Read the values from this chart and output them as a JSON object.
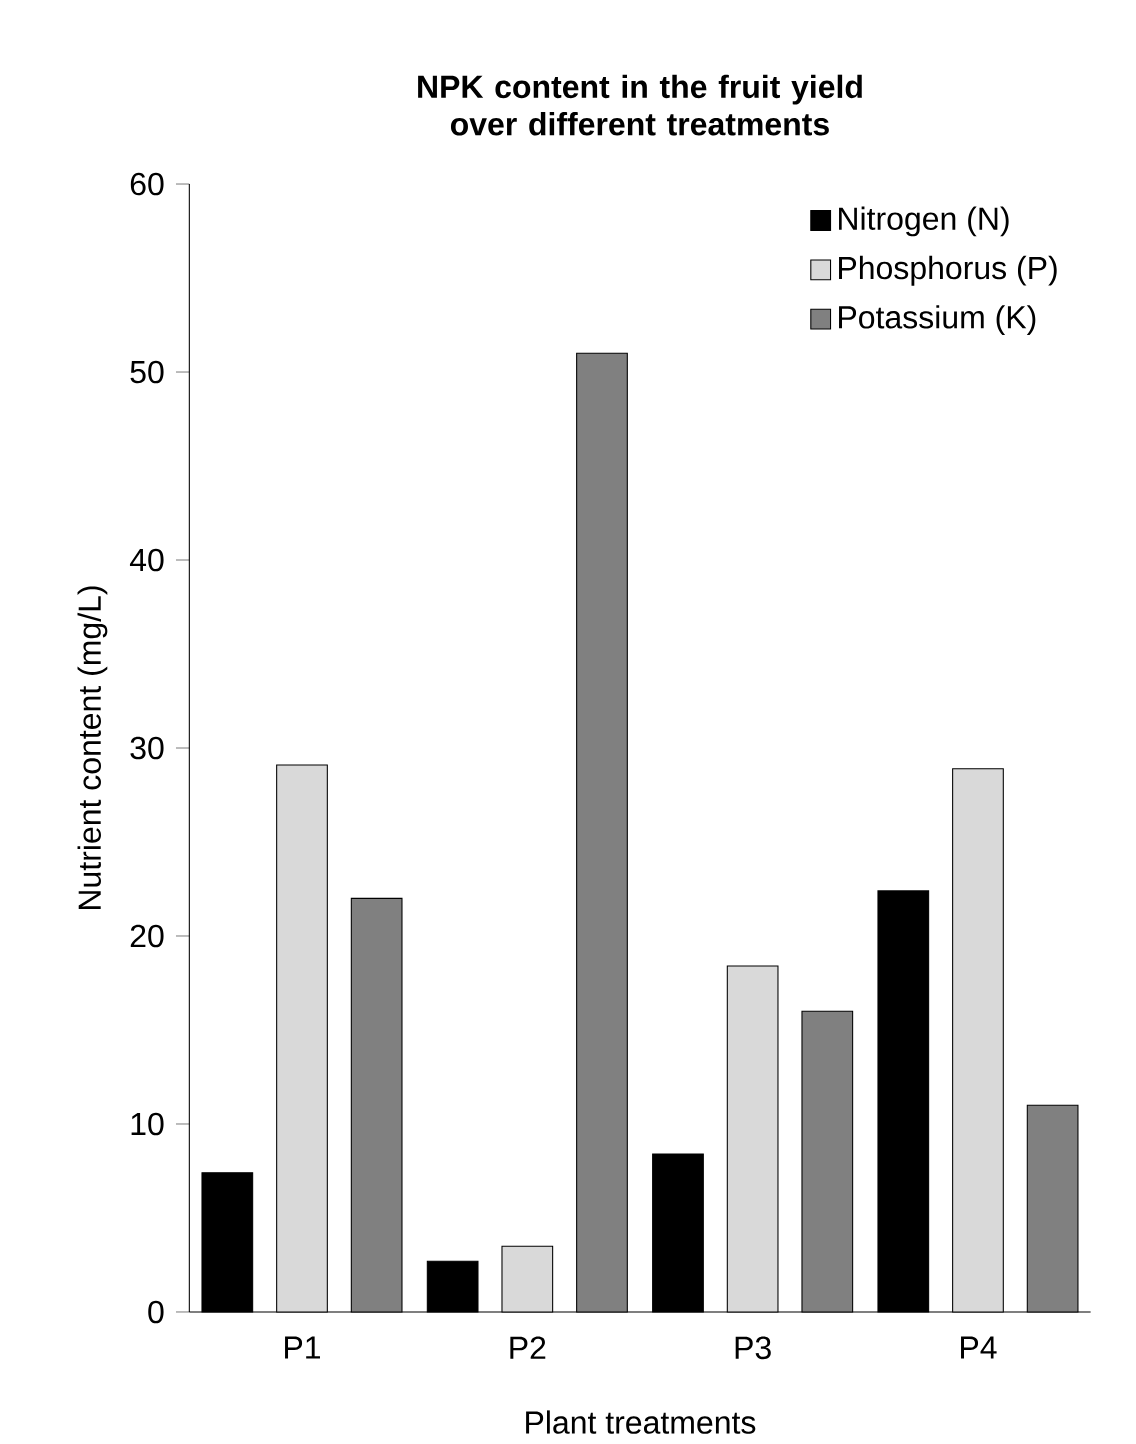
{
  "chart_data": {
    "type": "bar",
    "title": "NPK content in the fruit yield over different treatments",
    "xlabel": "Plant treatments",
    "ylabel": "Nutrient content (mg/L)",
    "categories": [
      "P1",
      "P2",
      "P3",
      "P4"
    ],
    "series": [
      {
        "name": "Nitrogen (N)",
        "color": "#000000",
        "values": [
          7.4,
          2.7,
          8.4,
          22.4
        ]
      },
      {
        "name": "Phosphorus (P)",
        "color": "#d9d9d9",
        "values": [
          29.1,
          3.5,
          18.4,
          28.9
        ]
      },
      {
        "name": "Potassium (K)",
        "color": "#808080",
        "values": [
          22.0,
          51.0,
          16.0,
          11.0
        ]
      }
    ],
    "ylim": [
      0,
      60
    ],
    "yticks": [
      0,
      10,
      20,
      30,
      40,
      50,
      60
    ],
    "legend": "top right",
    "grid": false
  }
}
